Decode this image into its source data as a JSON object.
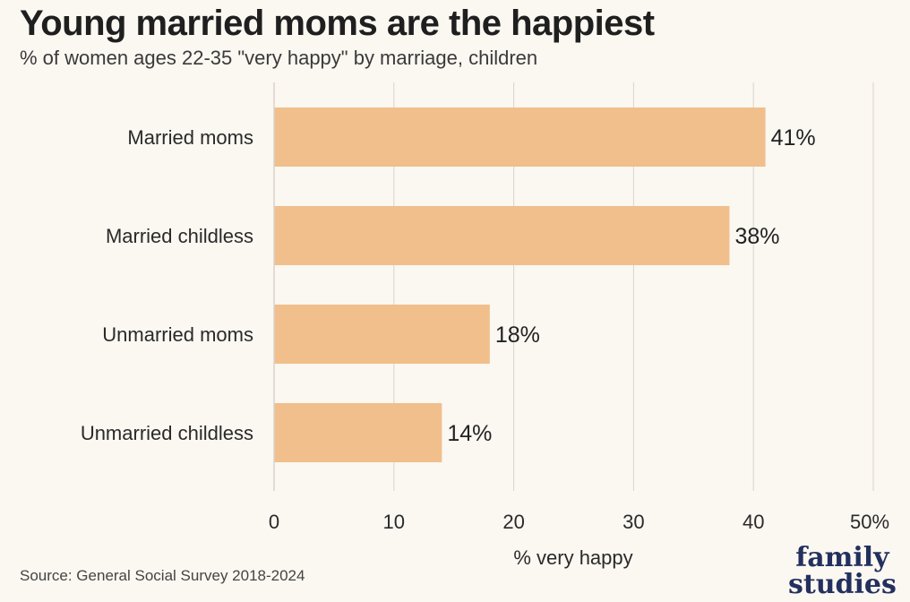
{
  "chart_data": {
    "type": "bar",
    "orientation": "horizontal",
    "title": "Young married moms are the happiest",
    "subtitle": "% of women ages 22-35 \"very happy\" by marriage, children",
    "categories": [
      "Married moms",
      "Married childless",
      "Unmarried moms",
      "Unmarried childless"
    ],
    "values": [
      41,
      38,
      18,
      14
    ],
    "value_labels": [
      "41%",
      "38%",
      "18%",
      "14%"
    ],
    "xlabel": "% very happy",
    "ylabel": "",
    "xlim": [
      0,
      50
    ],
    "x_ticks": [
      0,
      10,
      20,
      30,
      40,
      50
    ],
    "x_tick_labels": [
      "0",
      "10",
      "20",
      "30",
      "40",
      "50%"
    ],
    "grid": true,
    "bar_color": "#f0bf8c",
    "grid_color": "#d9d4cc"
  },
  "source": "Source: General Social Survey 2018-2024",
  "logo": {
    "line1": "family",
    "line2": "studies",
    "color": "#23305e"
  }
}
